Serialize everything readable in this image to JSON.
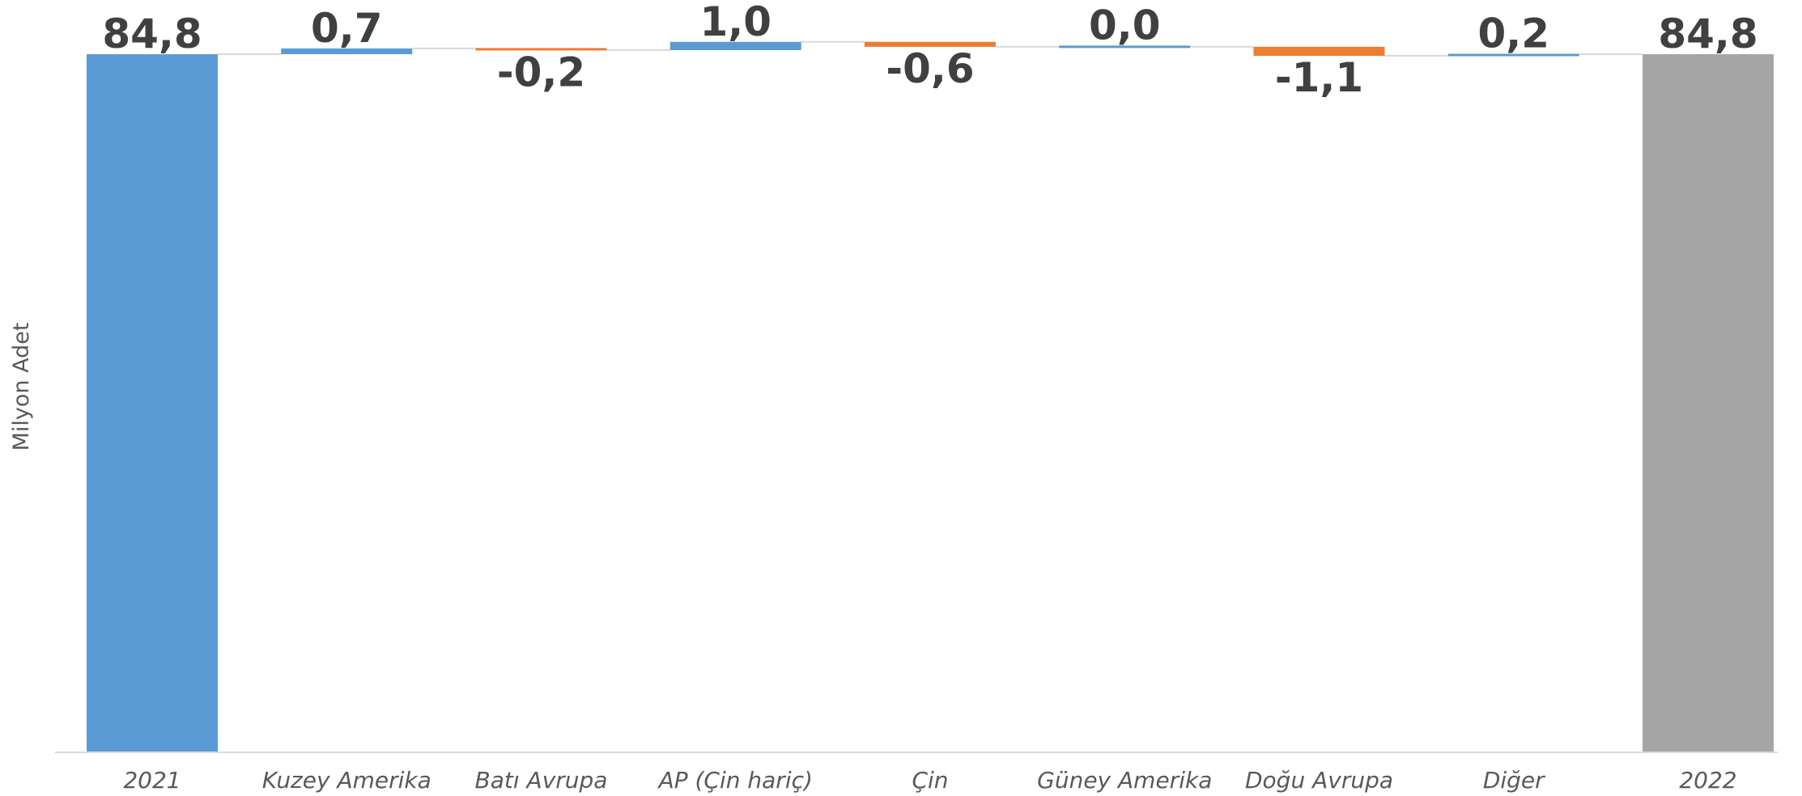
{
  "chart_data": {
    "type": "bar",
    "subtype": "waterfall",
    "title": "",
    "xlabel": "",
    "ylabel": "Milyon Adet",
    "categories": [
      "2021",
      "Kuzey Amerika",
      "Batı Avrupa",
      "AP (Çin hariç)",
      "Çin",
      "Güney Amerika",
      "Doğu Avrupa",
      "Diğer",
      "2022"
    ],
    "values": [
      84.8,
      0.7,
      -0.2,
      1.0,
      -0.6,
      0.0,
      -1.1,
      0.2,
      84.8
    ],
    "value_labels": [
      "84,8",
      "0,7",
      "-0,2",
      "1,0",
      "-0,6",
      "0,0",
      "-1,1",
      "0,2",
      "84,8"
    ],
    "bar_kinds": [
      "total",
      "delta",
      "delta",
      "delta",
      "delta",
      "delta",
      "delta",
      "delta",
      "total"
    ],
    "ylim": [
      0,
      86
    ],
    "grid": false,
    "legend": "none",
    "colors": {
      "start_total": "#5B9BD5",
      "end_total": "#A5A5A5",
      "increase": "#5B9BD5",
      "decrease": "#ED7D31",
      "connector": "#D9D9D9",
      "axis": "#D9D9D9"
    }
  }
}
